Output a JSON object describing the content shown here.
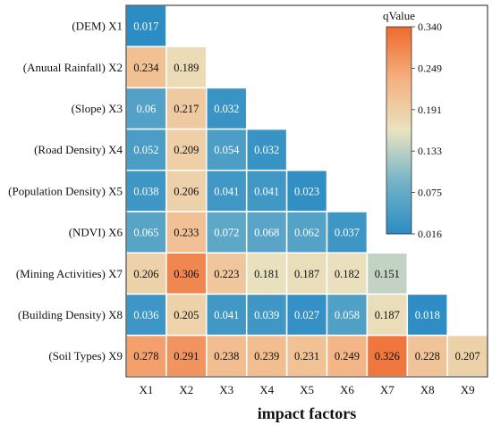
{
  "chart_data": {
    "type": "heatmap",
    "xlabel": "impact factors",
    "ylabel": "",
    "x_categories": [
      "X1",
      "X2",
      "X3",
      "X4",
      "X5",
      "X6",
      "X7",
      "X8",
      "X9"
    ],
    "y_categories": [
      "(DEM) X1",
      "(Anuual Rainfall) X2",
      "(Slope) X3",
      "(Road Density) X4",
      "(Population Density) X5",
      "(NDVI) X6",
      "(Mining Activities) X7",
      "(Building Density) X8",
      "(Soil Types) X9"
    ],
    "values": [
      [
        "0.017"
      ],
      [
        "0.234",
        "0.189"
      ],
      [
        "0.06",
        "0.217",
        "0.032"
      ],
      [
        "0.052",
        "0.209",
        "0.054",
        "0.032"
      ],
      [
        "0.038",
        "0.206",
        "0.041",
        "0.041",
        "0.023"
      ],
      [
        "0.065",
        "0.233",
        "0.072",
        "0.068",
        "0.062",
        "0.037"
      ],
      [
        "0.206",
        "0.306",
        "0.223",
        "0.181",
        "0.187",
        "0.182",
        "0.151"
      ],
      [
        "0.036",
        "0.205",
        "0.041",
        "0.039",
        "0.027",
        "0.058",
        "0.187",
        "0.018"
      ],
      [
        "0.278",
        "0.291",
        "0.238",
        "0.239",
        "0.231",
        "0.249",
        "0.326",
        "0.228",
        "0.207"
      ]
    ],
    "colorbar": {
      "title": "qValue",
      "min": 0.016,
      "max": 0.34,
      "ticks": [
        "0.340",
        "0.249",
        "0.191",
        "0.133",
        "0.075",
        "0.016"
      ],
      "colors": [
        "#2b8cc4",
        "#e9e3c0",
        "#ee6a2e"
      ]
    }
  }
}
